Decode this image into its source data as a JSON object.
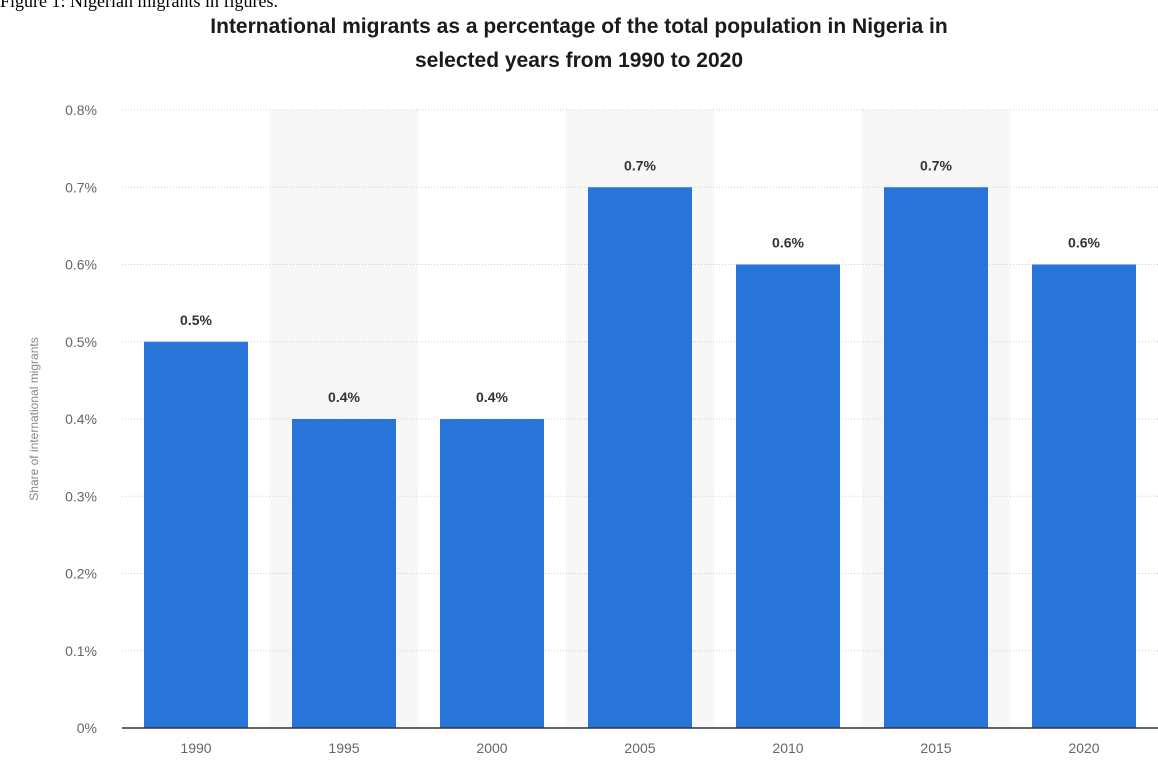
{
  "caption": "Figure 1: Nigerian migrants in figures.",
  "chart_data": {
    "type": "bar",
    "title_lines": [
      "International migrants as a percentage of the total population in Nigeria in",
      "selected years from 1990 to 2020"
    ],
    "xlabel": "",
    "ylabel": "Share of international migrants",
    "categories": [
      "1990",
      "1995",
      "2000",
      "2005",
      "2010",
      "2015",
      "2020"
    ],
    "values": [
      0.5,
      0.4,
      0.4,
      0.7,
      0.6,
      0.7,
      0.6
    ],
    "data_labels": [
      "0.5%",
      "0.4%",
      "0.4%",
      "0.7%",
      "0.6%",
      "0.7%",
      "0.6%"
    ],
    "ylim": [
      0,
      0.8
    ],
    "yticks": [
      0,
      0.1,
      0.2,
      0.3,
      0.4,
      0.5,
      0.6,
      0.7,
      0.8
    ],
    "ytick_labels": [
      "0%",
      "0.1%",
      "0.2%",
      "0.3%",
      "0.4%",
      "0.5%",
      "0.6%",
      "0.7%",
      "0.8%"
    ],
    "grid": true,
    "legend": "none",
    "bar_color": "#2874d8",
    "band_color": "#f7f7f7"
  }
}
